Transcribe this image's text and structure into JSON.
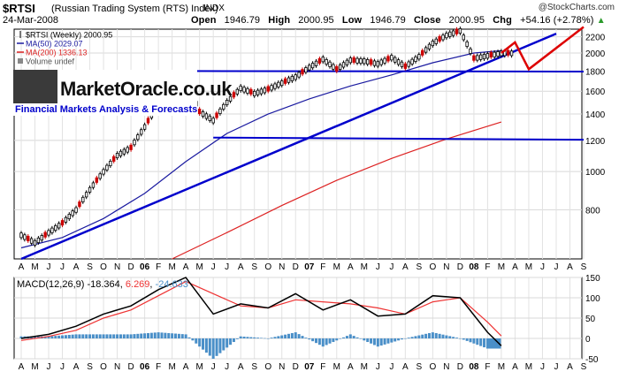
{
  "header": {
    "symbol": "$RTSI",
    "name": "(Russian Trading System (RTS) Index)",
    "exchange": "INDX",
    "watermark": "@StockCharts.com",
    "date": "24-Mar-2008",
    "open_label": "Open",
    "open": "1946.79",
    "high_label": "High",
    "high": "2000.95",
    "low_label": "Low",
    "low": "1946.79",
    "close_label": "Close",
    "close": "2000.95",
    "chg_label": "Chg",
    "chg": "+54.16 (+2.78%)",
    "chg_marker": "▲"
  },
  "legend": {
    "series1": "$RTSI (Weekly) 2000.95",
    "series2": "MA(50) 2029.07",
    "series3": "MA(200) 1336.13",
    "series4": "Volume undef"
  },
  "logo": {
    "brand": "MarketOracle.co.uk",
    "tagline": "Financial Markets Analysis & Forecasts"
  },
  "macd_label": {
    "text": "MACD(12,26,9) -18.364, ",
    "signal": "6.269",
    "sep": ", ",
    "hist": "-24.633"
  },
  "colors": {
    "price_up": "#000000",
    "price_down": "#cc0000",
    "ma50": "#1a1aa0",
    "ma200": "#dd2222",
    "trendline": "#0000cc",
    "forecast": "#dd0000",
    "macd_line": "#000000",
    "macd_signal": "#ee3333",
    "macd_hist": "#4a8fc8"
  },
  "chart_data": [
    {
      "type": "line",
      "title": "$RTSI (Weekly)",
      "ylim": [
        600,
        2300
      ],
      "ytick_labels": [
        "800",
        "1000",
        "1200",
        "1400",
        "1600",
        "1800",
        "2000",
        "2200"
      ],
      "x_labels": [
        "A",
        "M",
        "J",
        "J",
        "A",
        "S",
        "O",
        "N",
        "D",
        "06",
        "F",
        "M",
        "A",
        "M",
        "J",
        "J",
        "A",
        "S",
        "O",
        "N",
        "D",
        "07",
        "F",
        "M",
        "A",
        "M",
        "J",
        "J",
        "A",
        "S",
        "O",
        "N",
        "D",
        "08",
        "F",
        "M",
        "A",
        "M",
        "J",
        "J",
        "A",
        "S"
      ],
      "x_dates": [
        "2005-04",
        "2005-05",
        "2005-06",
        "2005-07",
        "2005-08",
        "2005-09",
        "2005-10",
        "2005-11",
        "2005-12",
        "2006-01",
        "2006-02",
        "2006-03",
        "2006-04",
        "2006-05",
        "2006-06",
        "2006-07",
        "2006-08",
        "2006-09",
        "2006-10",
        "2006-11",
        "2006-12",
        "2007-01",
        "2007-02",
        "2007-03",
        "2007-04",
        "2007-05",
        "2007-06",
        "2007-07",
        "2007-08",
        "2007-09",
        "2007-10",
        "2007-11",
        "2007-12",
        "2008-01",
        "2008-02",
        "2008-03",
        "2008-04",
        "2008-05",
        "2008-06",
        "2008-07",
        "2008-08",
        "2008-09"
      ],
      "series": [
        {
          "name": "$RTSI (Weekly)",
          "x": [
            "2005-04",
            "2005-05",
            "2005-06",
            "2005-07",
            "2005-08",
            "2005-09",
            "2005-10",
            "2005-11",
            "2005-12",
            "2006-01",
            "2006-02",
            "2006-03",
            "2006-04",
            "2006-05",
            "2006-06",
            "2006-07",
            "2006-08",
            "2006-09",
            "2006-10",
            "2006-11",
            "2006-12",
            "2007-01",
            "2007-02",
            "2007-03",
            "2007-04",
            "2007-05",
            "2007-06",
            "2007-07",
            "2007-08",
            "2007-09",
            "2007-10",
            "2007-11",
            "2007-12",
            "2008-01",
            "2008-02",
            "2008-03"
          ],
          "values": [
            690,
            660,
            700,
            740,
            800,
            900,
            1000,
            1100,
            1150,
            1300,
            1480,
            1600,
            1700,
            1420,
            1350,
            1500,
            1630,
            1580,
            1620,
            1680,
            1740,
            1840,
            1930,
            1820,
            1920,
            1910,
            1880,
            1950,
            1850,
            1960,
            2120,
            2220,
            2280,
            1940,
            1970,
            2000
          ]
        },
        {
          "name": "MA(50)",
          "x": [
            "2005-04",
            "2005-07",
            "2005-10",
            "2006-01",
            "2006-04",
            "2006-07",
            "2006-10",
            "2007-01",
            "2007-04",
            "2007-07",
            "2007-10",
            "2008-01",
            "2008-03"
          ],
          "values": [
            640,
            680,
            760,
            880,
            1060,
            1250,
            1400,
            1530,
            1650,
            1760,
            1890,
            2000,
            2029
          ]
        },
        {
          "name": "MA(200)",
          "x": [
            "2006-03",
            "2006-07",
            "2006-11",
            "2007-03",
            "2007-07",
            "2007-11",
            "2008-03"
          ],
          "values": [
            600,
            700,
            820,
            950,
            1080,
            1210,
            1336
          ]
        },
        {
          "name": "Trendline support",
          "x": [
            "2005-04",
            "2008-07"
          ],
          "values": [
            600,
            2240
          ]
        },
        {
          "name": "Support 1800",
          "x": [
            "2006-04",
            "2008-09"
          ],
          "values": [
            1800,
            1795
          ]
        },
        {
          "name": "Support 1200",
          "x": [
            "2006-06",
            "2008-09"
          ],
          "values": [
            1220,
            1205
          ]
        },
        {
          "name": "Forecast path",
          "x": [
            "2008-03",
            "2008-04",
            "2008-05",
            "2008-09"
          ],
          "values": [
            2000,
            2130,
            1820,
            2330
          ]
        }
      ]
    },
    {
      "type": "line",
      "title": "MACD(12,26,9)",
      "ylim": [
        -50,
        150
      ],
      "ytick_labels": [
        "150",
        "100",
        "50",
        "0",
        "-50"
      ],
      "x_labels": [
        "A",
        "M",
        "J",
        "J",
        "A",
        "S",
        "O",
        "N",
        "D",
        "06",
        "F",
        "M",
        "A",
        "M",
        "J",
        "J",
        "A",
        "S",
        "O",
        "N",
        "D",
        "07",
        "F",
        "M",
        "A",
        "M",
        "J",
        "J",
        "A",
        "S",
        "O",
        "N",
        "D",
        "08",
        "F",
        "M",
        "A",
        "M",
        "J",
        "J",
        "A",
        "S"
      ],
      "x_dates": [
        "2005-04",
        "2005-05",
        "2005-06",
        "2005-07",
        "2005-08",
        "2005-09",
        "2005-10",
        "2005-11",
        "2005-12",
        "2006-01",
        "2006-02",
        "2006-03",
        "2006-04",
        "2006-05",
        "2006-06",
        "2006-07",
        "2006-08",
        "2006-09",
        "2006-10",
        "2006-11",
        "2006-12",
        "2007-01",
        "2007-02",
        "2007-03",
        "2007-04",
        "2007-05",
        "2007-06",
        "2007-07",
        "2007-08",
        "2007-09",
        "2007-10",
        "2007-11",
        "2007-12",
        "2008-01",
        "2008-02",
        "2008-03",
        "2008-04",
        "2008-05",
        "2008-06",
        "2008-07",
        "2008-08",
        "2008-09"
      ],
      "series": [
        {
          "name": "MACD",
          "x": [
            "2005-04",
            "2005-06",
            "2005-08",
            "2005-10",
            "2005-12",
            "2006-02",
            "2006-04",
            "2006-06",
            "2006-08",
            "2006-10",
            "2006-12",
            "2007-02",
            "2007-04",
            "2007-06",
            "2007-08",
            "2007-10",
            "2007-12",
            "2008-02",
            "2008-03"
          ],
          "values": [
            0,
            10,
            30,
            60,
            80,
            120,
            150,
            60,
            85,
            75,
            110,
            70,
            95,
            55,
            60,
            105,
            100,
            15,
            -18
          ]
        },
        {
          "name": "Signal",
          "x": [
            "2005-04",
            "2005-06",
            "2005-08",
            "2005-10",
            "2005-12",
            "2006-02",
            "2006-04",
            "2006-06",
            "2006-08",
            "2006-10",
            "2006-12",
            "2007-02",
            "2007-04",
            "2007-06",
            "2007-08",
            "2007-10",
            "2007-12",
            "2008-02",
            "2008-03"
          ],
          "values": [
            -5,
            5,
            20,
            50,
            70,
            105,
            140,
            110,
            80,
            75,
            95,
            90,
            85,
            75,
            60,
            90,
            100,
            40,
            6
          ]
        },
        {
          "name": "Histogram",
          "x": [
            "2005-04",
            "2005-06",
            "2005-08",
            "2005-10",
            "2005-12",
            "2006-02",
            "2006-04",
            "2006-06",
            "2006-08",
            "2006-10",
            "2006-12",
            "2007-02",
            "2007-04",
            "2007-06",
            "2007-08",
            "2007-10",
            "2007-12",
            "2008-02",
            "2008-03"
          ],
          "values": [
            5,
            5,
            10,
            10,
            10,
            15,
            10,
            -50,
            5,
            0,
            15,
            -20,
            10,
            -20,
            0,
            15,
            0,
            -25,
            -25
          ]
        }
      ]
    }
  ]
}
